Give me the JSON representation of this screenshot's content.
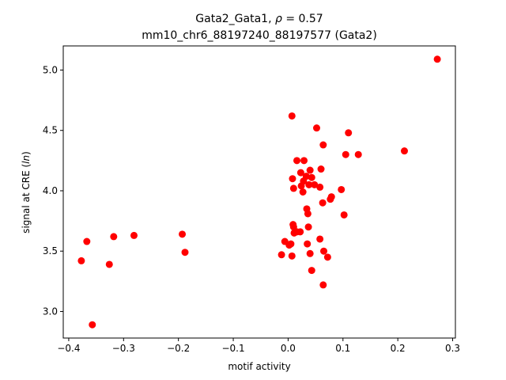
{
  "chart_data": {
    "type": "scatter",
    "title_line1": "Gata2_Gata1, ",
    "title_rho": "ρ",
    "title_rho_value": " = 0.57",
    "title_line2": "mm10_chr6_88197240_88197577 (Gata2)",
    "xlabel": "motif activity",
    "ylabel_prefix": "signal at CRE (",
    "ylabel_italic": "ln",
    "ylabel_suffix": ")",
    "xlim": [
      -0.41,
      0.305
    ],
    "ylim": [
      2.78,
      5.2
    ],
    "xticks": [
      -0.4,
      -0.3,
      -0.2,
      -0.1,
      0.0,
      0.1,
      0.2,
      0.3
    ],
    "xtick_labels": [
      "−0.4",
      "−0.3",
      "−0.2",
      "−0.1",
      "0.0",
      "0.1",
      "0.2",
      "0.3"
    ],
    "yticks": [
      3.0,
      3.5,
      4.0,
      4.5,
      5.0
    ],
    "ytick_labels": [
      "3.0",
      "3.5",
      "4.0",
      "4.5",
      "5.0"
    ],
    "grid": false,
    "marker_color": "#ff0000",
    "points": [
      [
        0.272,
        5.09
      ],
      [
        0.212,
        4.33
      ],
      [
        0.128,
        4.3
      ],
      [
        0.105,
        4.3
      ],
      [
        0.11,
        4.48
      ],
      [
        0.007,
        4.62
      ],
      [
        0.052,
        4.52
      ],
      [
        0.064,
        4.38
      ],
      [
        0.016,
        4.25
      ],
      [
        0.029,
        4.25
      ],
      [
        0.06,
        4.18
      ],
      [
        0.023,
        4.15
      ],
      [
        0.04,
        4.17
      ],
      [
        0.033,
        4.12
      ],
      [
        0.043,
        4.11
      ],
      [
        0.008,
        4.1
      ],
      [
        0.028,
        4.08
      ],
      [
        0.038,
        4.05
      ],
      [
        0.048,
        4.05
      ],
      [
        0.024,
        4.04
      ],
      [
        0.058,
        4.03
      ],
      [
        0.01,
        4.02
      ],
      [
        0.027,
        3.99
      ],
      [
        0.097,
        4.01
      ],
      [
        0.079,
        3.95
      ],
      [
        0.077,
        3.93
      ],
      [
        0.063,
        3.9
      ],
      [
        0.034,
        3.85
      ],
      [
        0.036,
        3.81
      ],
      [
        0.102,
        3.8
      ],
      [
        0.009,
        3.72
      ],
      [
        0.01,
        3.7
      ],
      [
        0.037,
        3.7
      ],
      [
        0.022,
        3.66
      ],
      [
        0.011,
        3.65
      ],
      [
        0.016,
        3.66
      ],
      [
        0.058,
        3.6
      ],
      [
        -0.006,
        3.58
      ],
      [
        0.005,
        3.56
      ],
      [
        0.002,
        3.55
      ],
      [
        0.035,
        3.56
      ],
      [
        0.065,
        3.5
      ],
      [
        0.04,
        3.48
      ],
      [
        -0.012,
        3.47
      ],
      [
        0.007,
        3.46
      ],
      [
        0.072,
        3.45
      ],
      [
        0.043,
        3.34
      ],
      [
        0.064,
        3.22
      ],
      [
        -0.367,
        3.58
      ],
      [
        -0.318,
        3.62
      ],
      [
        -0.281,
        3.63
      ],
      [
        -0.193,
        3.64
      ],
      [
        -0.188,
        3.49
      ],
      [
        -0.377,
        3.42
      ],
      [
        -0.326,
        3.39
      ],
      [
        -0.357,
        2.89
      ]
    ]
  }
}
